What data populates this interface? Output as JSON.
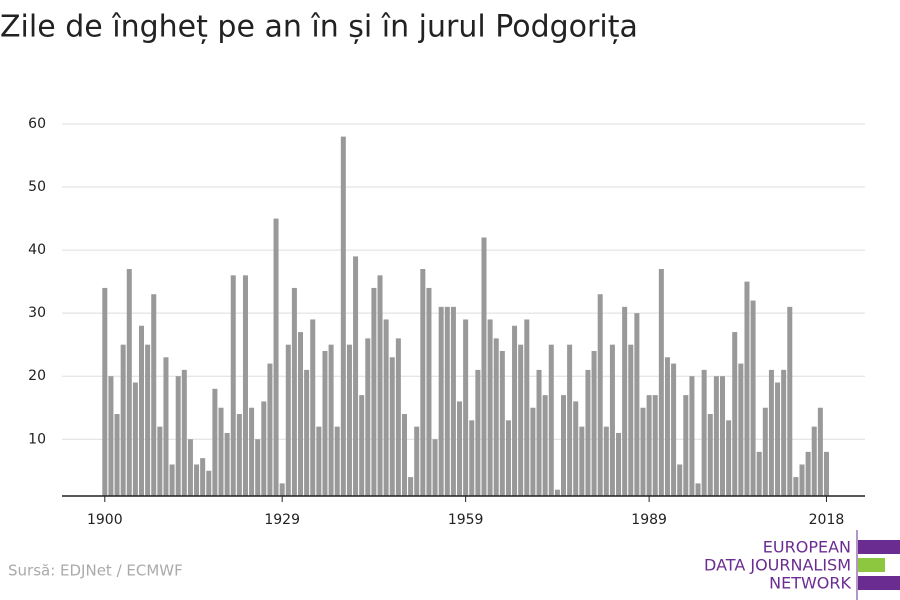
{
  "chart_data": {
    "type": "bar",
    "title": "Zile de îngheț pe an în și în jurul Podgorița",
    "source": "Sursă: EDJNet / ECMWF",
    "logo": [
      "EUROPEAN",
      "DATA JOURNALISM",
      "NETWORK"
    ],
    "color": "#999999",
    "x": [
      1900,
      1901,
      1902,
      1903,
      1904,
      1905,
      1906,
      1907,
      1908,
      1909,
      1910,
      1911,
      1912,
      1913,
      1914,
      1915,
      1916,
      1917,
      1918,
      1919,
      1920,
      1921,
      1922,
      1923,
      1924,
      1925,
      1926,
      1927,
      1928,
      1929,
      1930,
      1931,
      1932,
      1933,
      1934,
      1935,
      1936,
      1937,
      1938,
      1939,
      1940,
      1941,
      1942,
      1943,
      1944,
      1945,
      1946,
      1947,
      1948,
      1949,
      1950,
      1951,
      1952,
      1953,
      1954,
      1955,
      1956,
      1957,
      1958,
      1959,
      1960,
      1961,
      1962,
      1963,
      1964,
      1965,
      1966,
      1967,
      1968,
      1969,
      1970,
      1971,
      1972,
      1973,
      1974,
      1975,
      1976,
      1977,
      1978,
      1979,
      1980,
      1981,
      1982,
      1983,
      1984,
      1985,
      1986,
      1987,
      1988,
      1989,
      1990,
      1991,
      1992,
      1993,
      1994,
      1995,
      1996,
      1997,
      1998,
      1999,
      2000,
      2001,
      2002,
      2003,
      2004,
      2005,
      2006,
      2007,
      2008,
      2009,
      2010,
      2011,
      2012,
      2013,
      2014,
      2015,
      2016,
      2017,
      2018
    ],
    "values": [
      34,
      20,
      14,
      25,
      37,
      19,
      28,
      25,
      33,
      12,
      23,
      6,
      20,
      21,
      10,
      6,
      7,
      5,
      18,
      15,
      11,
      36,
      14,
      36,
      15,
      10,
      16,
      22,
      45,
      3,
      25,
      34,
      27,
      21,
      29,
      12,
      24,
      25,
      12,
      58,
      25,
      39,
      17,
      26,
      34,
      36,
      29,
      23,
      26,
      14,
      4,
      12,
      37,
      34,
      10,
      31,
      31,
      31,
      16,
      29,
      13,
      21,
      42,
      29,
      26,
      24,
      13,
      28,
      25,
      29,
      15,
      21,
      17,
      25,
      2,
      17,
      25,
      16,
      12,
      21,
      24,
      33,
      12,
      25,
      11,
      31,
      25,
      30,
      15,
      17,
      17,
      37,
      23,
      22,
      6,
      17,
      20,
      3,
      21,
      14,
      20,
      20,
      13,
      27,
      22,
      35,
      32,
      8,
      15,
      21,
      19,
      21,
      31,
      4,
      6,
      8,
      12,
      15,
      8
    ],
    "xlim": [
      1893,
      2024.3
    ],
    "xticks": [
      1900,
      1929,
      1959,
      1989,
      2018
    ],
    "ylim": [
      1,
      60
    ],
    "yticks": [
      10,
      20,
      30,
      40,
      50,
      60
    ],
    "grid": true
  }
}
